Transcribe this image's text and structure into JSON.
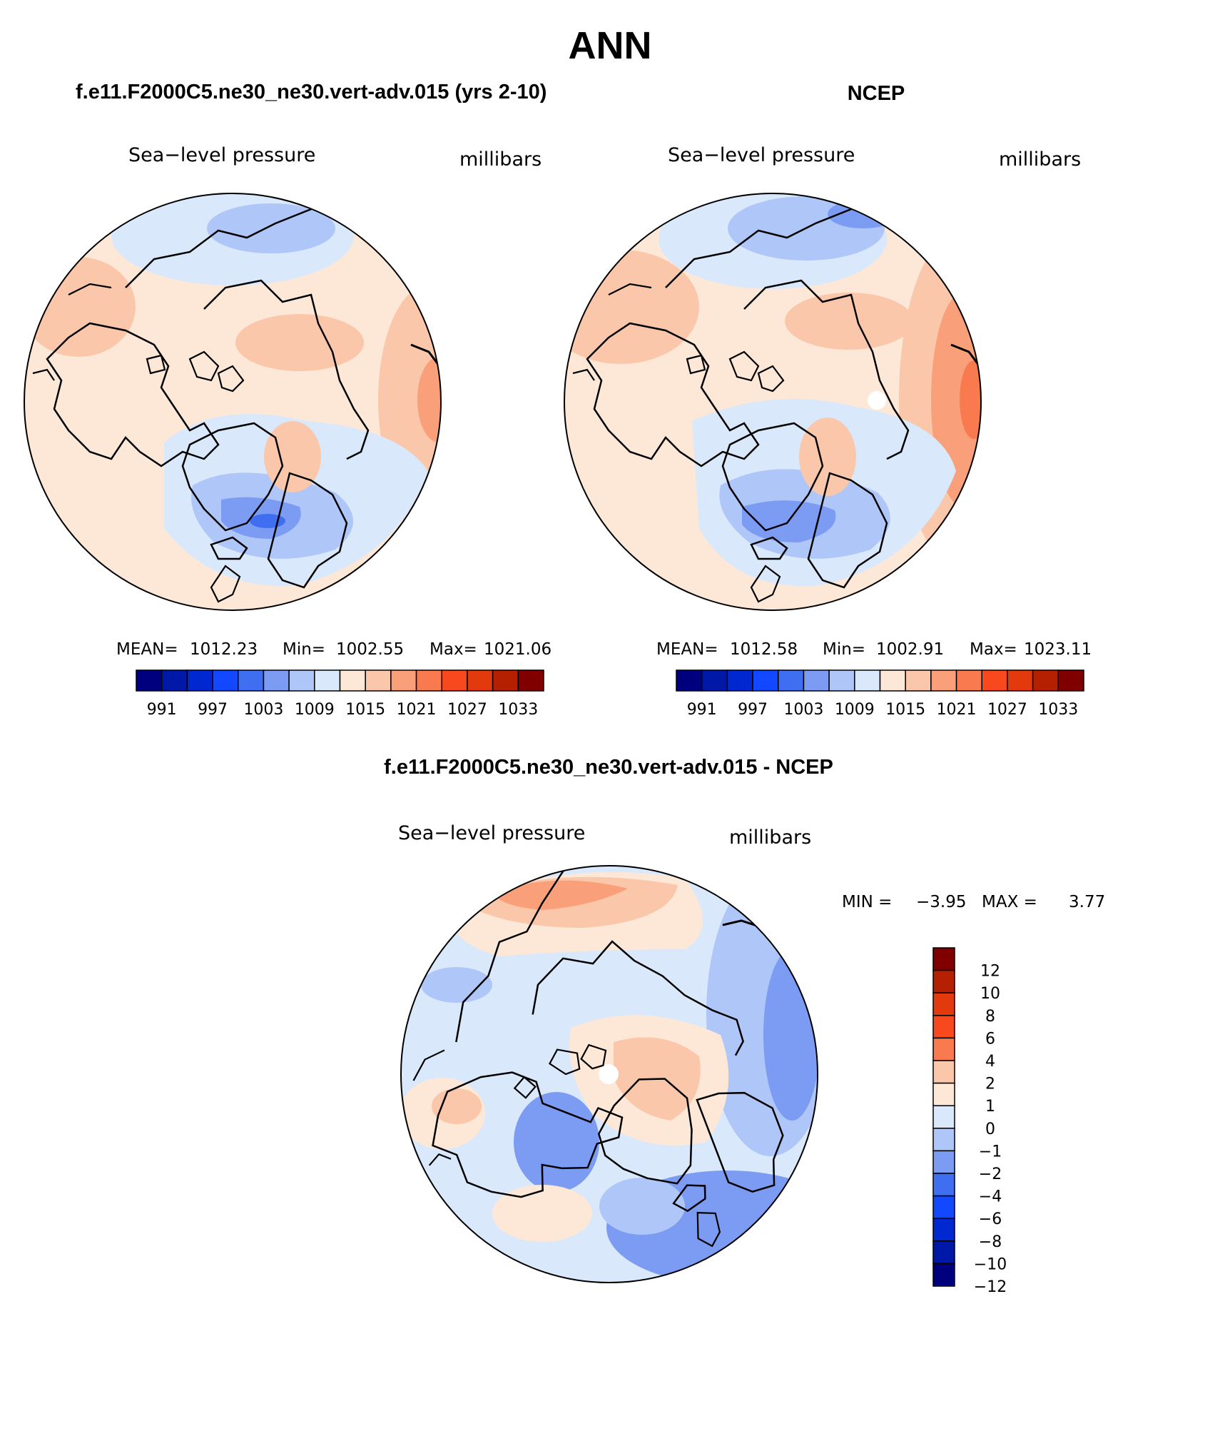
{
  "page": {
    "title": "ANN",
    "top_left_title": "f.e11.F2000C5.ne30_ne30.vert-adv.015 (yrs 2-10)",
    "top_right_title": "NCEP",
    "bottom_title": "f.e11.F2000C5.ne30_ne30.vert-adv.015 - NCEP"
  },
  "panels": [
    {
      "id": "model",
      "variable": "Sea−level pressure",
      "units": "millibars",
      "stats": {
        "mean_label": "MEAN=",
        "mean": "1012.23",
        "min_label": "Min=",
        "min": "1002.55",
        "max_label": "Max=",
        "max": "1021.06"
      }
    },
    {
      "id": "ncep",
      "variable": "Sea−level pressure",
      "units": "millibars",
      "stats": {
        "mean_label": "MEAN=",
        "mean": "1012.58",
        "min_label": "Min=",
        "min": "1002.91",
        "max_label": "Max=",
        "max": "1023.11"
      }
    },
    {
      "id": "difference",
      "variable": "Sea−level pressure",
      "units": "millibars",
      "stats": {
        "min_label": "MIN =",
        "min": "−3.95",
        "max_label": "MAX =",
        "max": "3.77"
      }
    }
  ],
  "colorbars": {
    "absolute": {
      "orientation": "horizontal",
      "colors": [
        "#00007f",
        "#0018a8",
        "#0028d0",
        "#1248ff",
        "#3f6ff0",
        "#7b9cf2",
        "#afc6f8",
        "#d9e8fb",
        "#fde8d8",
        "#fbc7aa",
        "#f9a07a",
        "#f97a4f",
        "#f8481e",
        "#e23a0c",
        "#b52100",
        "#800000"
      ],
      "tick_labels": [
        "991",
        "997",
        "1003",
        "1009",
        "1015",
        "1021",
        "1027",
        "1033"
      ]
    },
    "difference": {
      "orientation": "vertical",
      "colors": [
        "#800000",
        "#b52100",
        "#e23a0c",
        "#f8481e",
        "#f97a4f",
        "#fbc7aa",
        "#fde8d8",
        "#d9e8fb",
        "#afc6f8",
        "#7b9cf2",
        "#3f6ff0",
        "#1248ff",
        "#0028d0",
        "#0018a8",
        "#00007f"
      ],
      "tick_labels": [
        "12",
        "10",
        "8",
        "6",
        "4",
        "2",
        "1",
        "0",
        "−1",
        "−2",
        "−4",
        "−6",
        "−8",
        "−10",
        "−12"
      ]
    }
  }
}
